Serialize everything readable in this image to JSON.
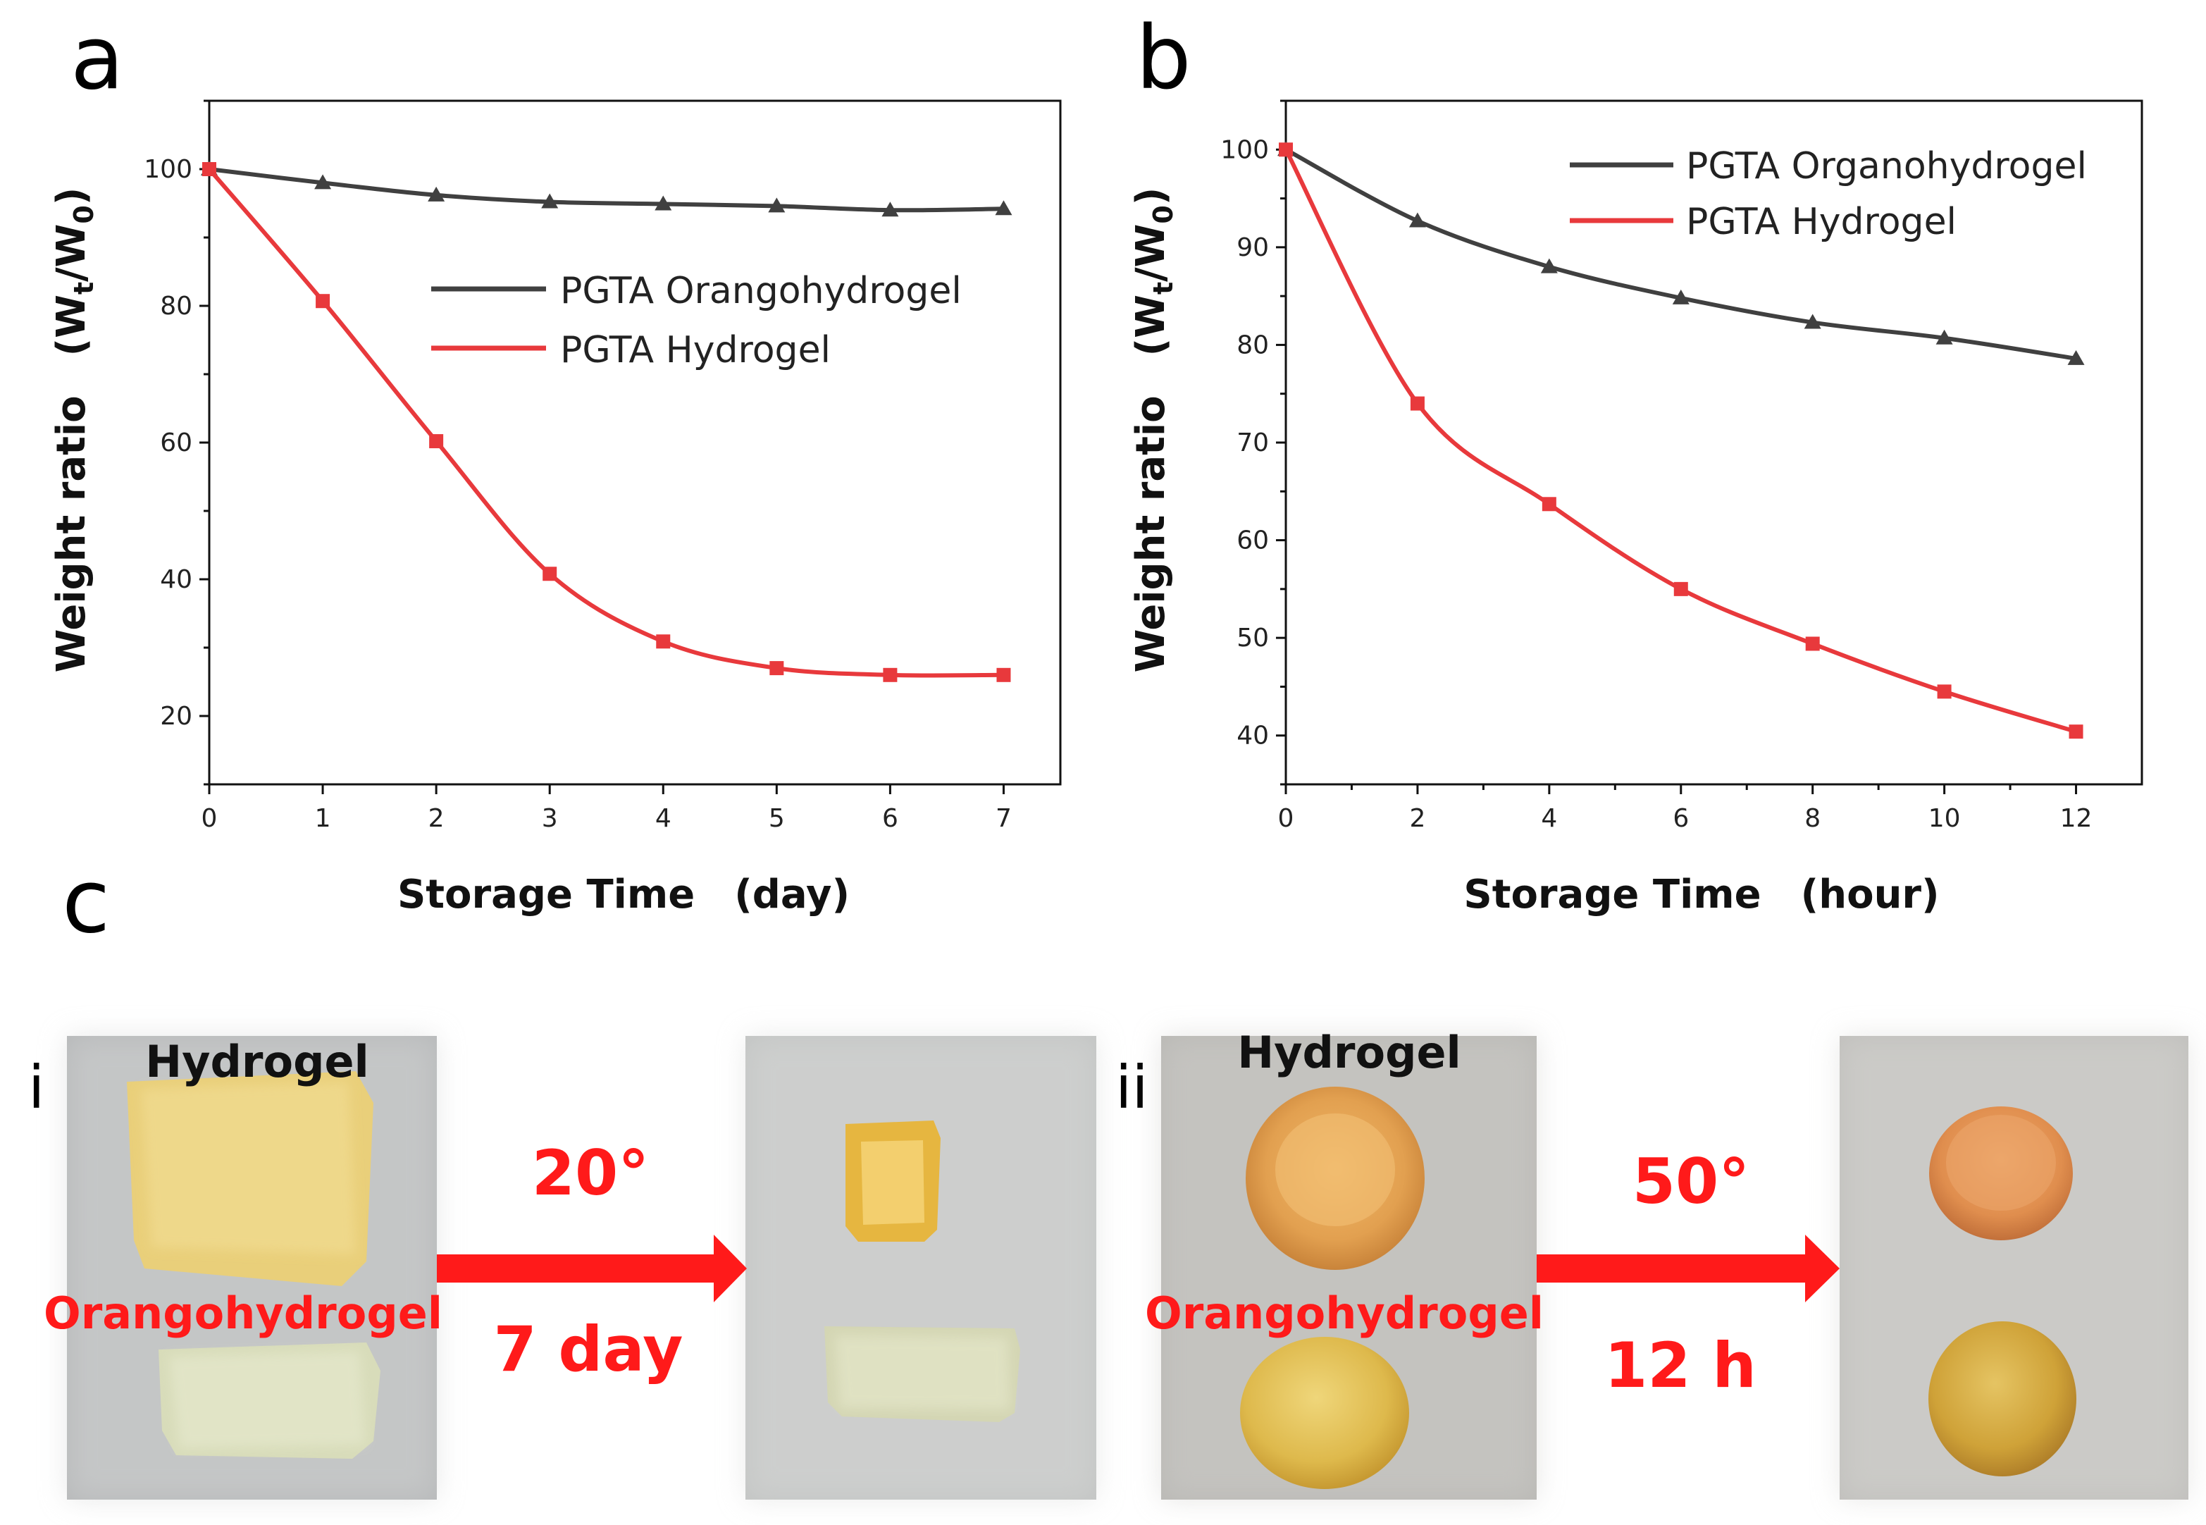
{
  "panel_labels": {
    "a": "a",
    "b": "b",
    "c": "c",
    "i": "i",
    "ii": "ii"
  },
  "colors": {
    "organo": "#404040",
    "hydro": "#e8393c",
    "arrow": "#ff1a1a"
  },
  "chart_data": [
    {
      "type": "line",
      "title": "",
      "xlabel": "Storage Time (day)",
      "ylabel_main": "Weight ratio (W",
      "ylabel_sub_t": "t",
      "ylabel_mid": "/W",
      "ylabel_sub_0": "0",
      "ylabel_end": ")",
      "xlim": [
        0,
        7.5
      ],
      "ylim": [
        10,
        110
      ],
      "xticks": [
        0,
        1,
        2,
        3,
        4,
        5,
        6,
        7
      ],
      "yticks": [
        20,
        40,
        60,
        80,
        100
      ],
      "legend_position": "upper-right",
      "series": [
        {
          "name": "PGTA Orangohydrogel",
          "marker": "triangle",
          "color": "#404040",
          "x": [
            0,
            1,
            2,
            3,
            4,
            5,
            6,
            7
          ],
          "values": [
            100,
            98,
            96.2,
            95.2,
            94.9,
            94.6,
            94.0,
            94.2
          ]
        },
        {
          "name": "PGTA Hydrogel",
          "marker": "square",
          "color": "#e8393c",
          "x": [
            0,
            1,
            2,
            3,
            4,
            5,
            6,
            7
          ],
          "values": [
            100,
            80.7,
            60.2,
            40.8,
            30.9,
            27.0,
            26.0,
            26.0
          ]
        }
      ]
    },
    {
      "type": "line",
      "title": "",
      "xlabel": "Storage Time (hour)",
      "ylabel_main": "Weight ratio (W",
      "ylabel_sub_t": "t",
      "ylabel_mid": "/W",
      "ylabel_sub_0": "0",
      "ylabel_end": ")",
      "xlim": [
        0,
        13
      ],
      "ylim": [
        35,
        105
      ],
      "xticks": [
        0,
        2,
        4,
        6,
        8,
        10,
        12
      ],
      "yticks": [
        40,
        50,
        60,
        70,
        80,
        90,
        100
      ],
      "legend_position": "upper-right",
      "series": [
        {
          "name": "PGTA Organohydrogel",
          "marker": "triangle",
          "color": "#404040",
          "x": [
            0,
            2,
            4,
            6,
            8,
            10,
            12
          ],
          "values": [
            100,
            92.7,
            88.0,
            84.8,
            82.3,
            80.7,
            78.6
          ]
        },
        {
          "name": "PGTA Hydrogel",
          "marker": "square",
          "color": "#e8393c",
          "x": [
            0,
            2,
            4,
            6,
            8,
            10,
            12
          ],
          "values": [
            100,
            74.0,
            63.7,
            55.0,
            49.4,
            44.5,
            40.4
          ]
        }
      ]
    }
  ],
  "photos": {
    "left": {
      "top_label": "Hydrogel",
      "bottom_label": "Orangohydrogel",
      "arrow_top": "20°",
      "arrow_bottom": "7 day"
    },
    "right": {
      "top_label": "Hydrogel",
      "bottom_label": "Orangohydrogel",
      "arrow_top": "50°",
      "arrow_bottom": "12 h"
    }
  }
}
